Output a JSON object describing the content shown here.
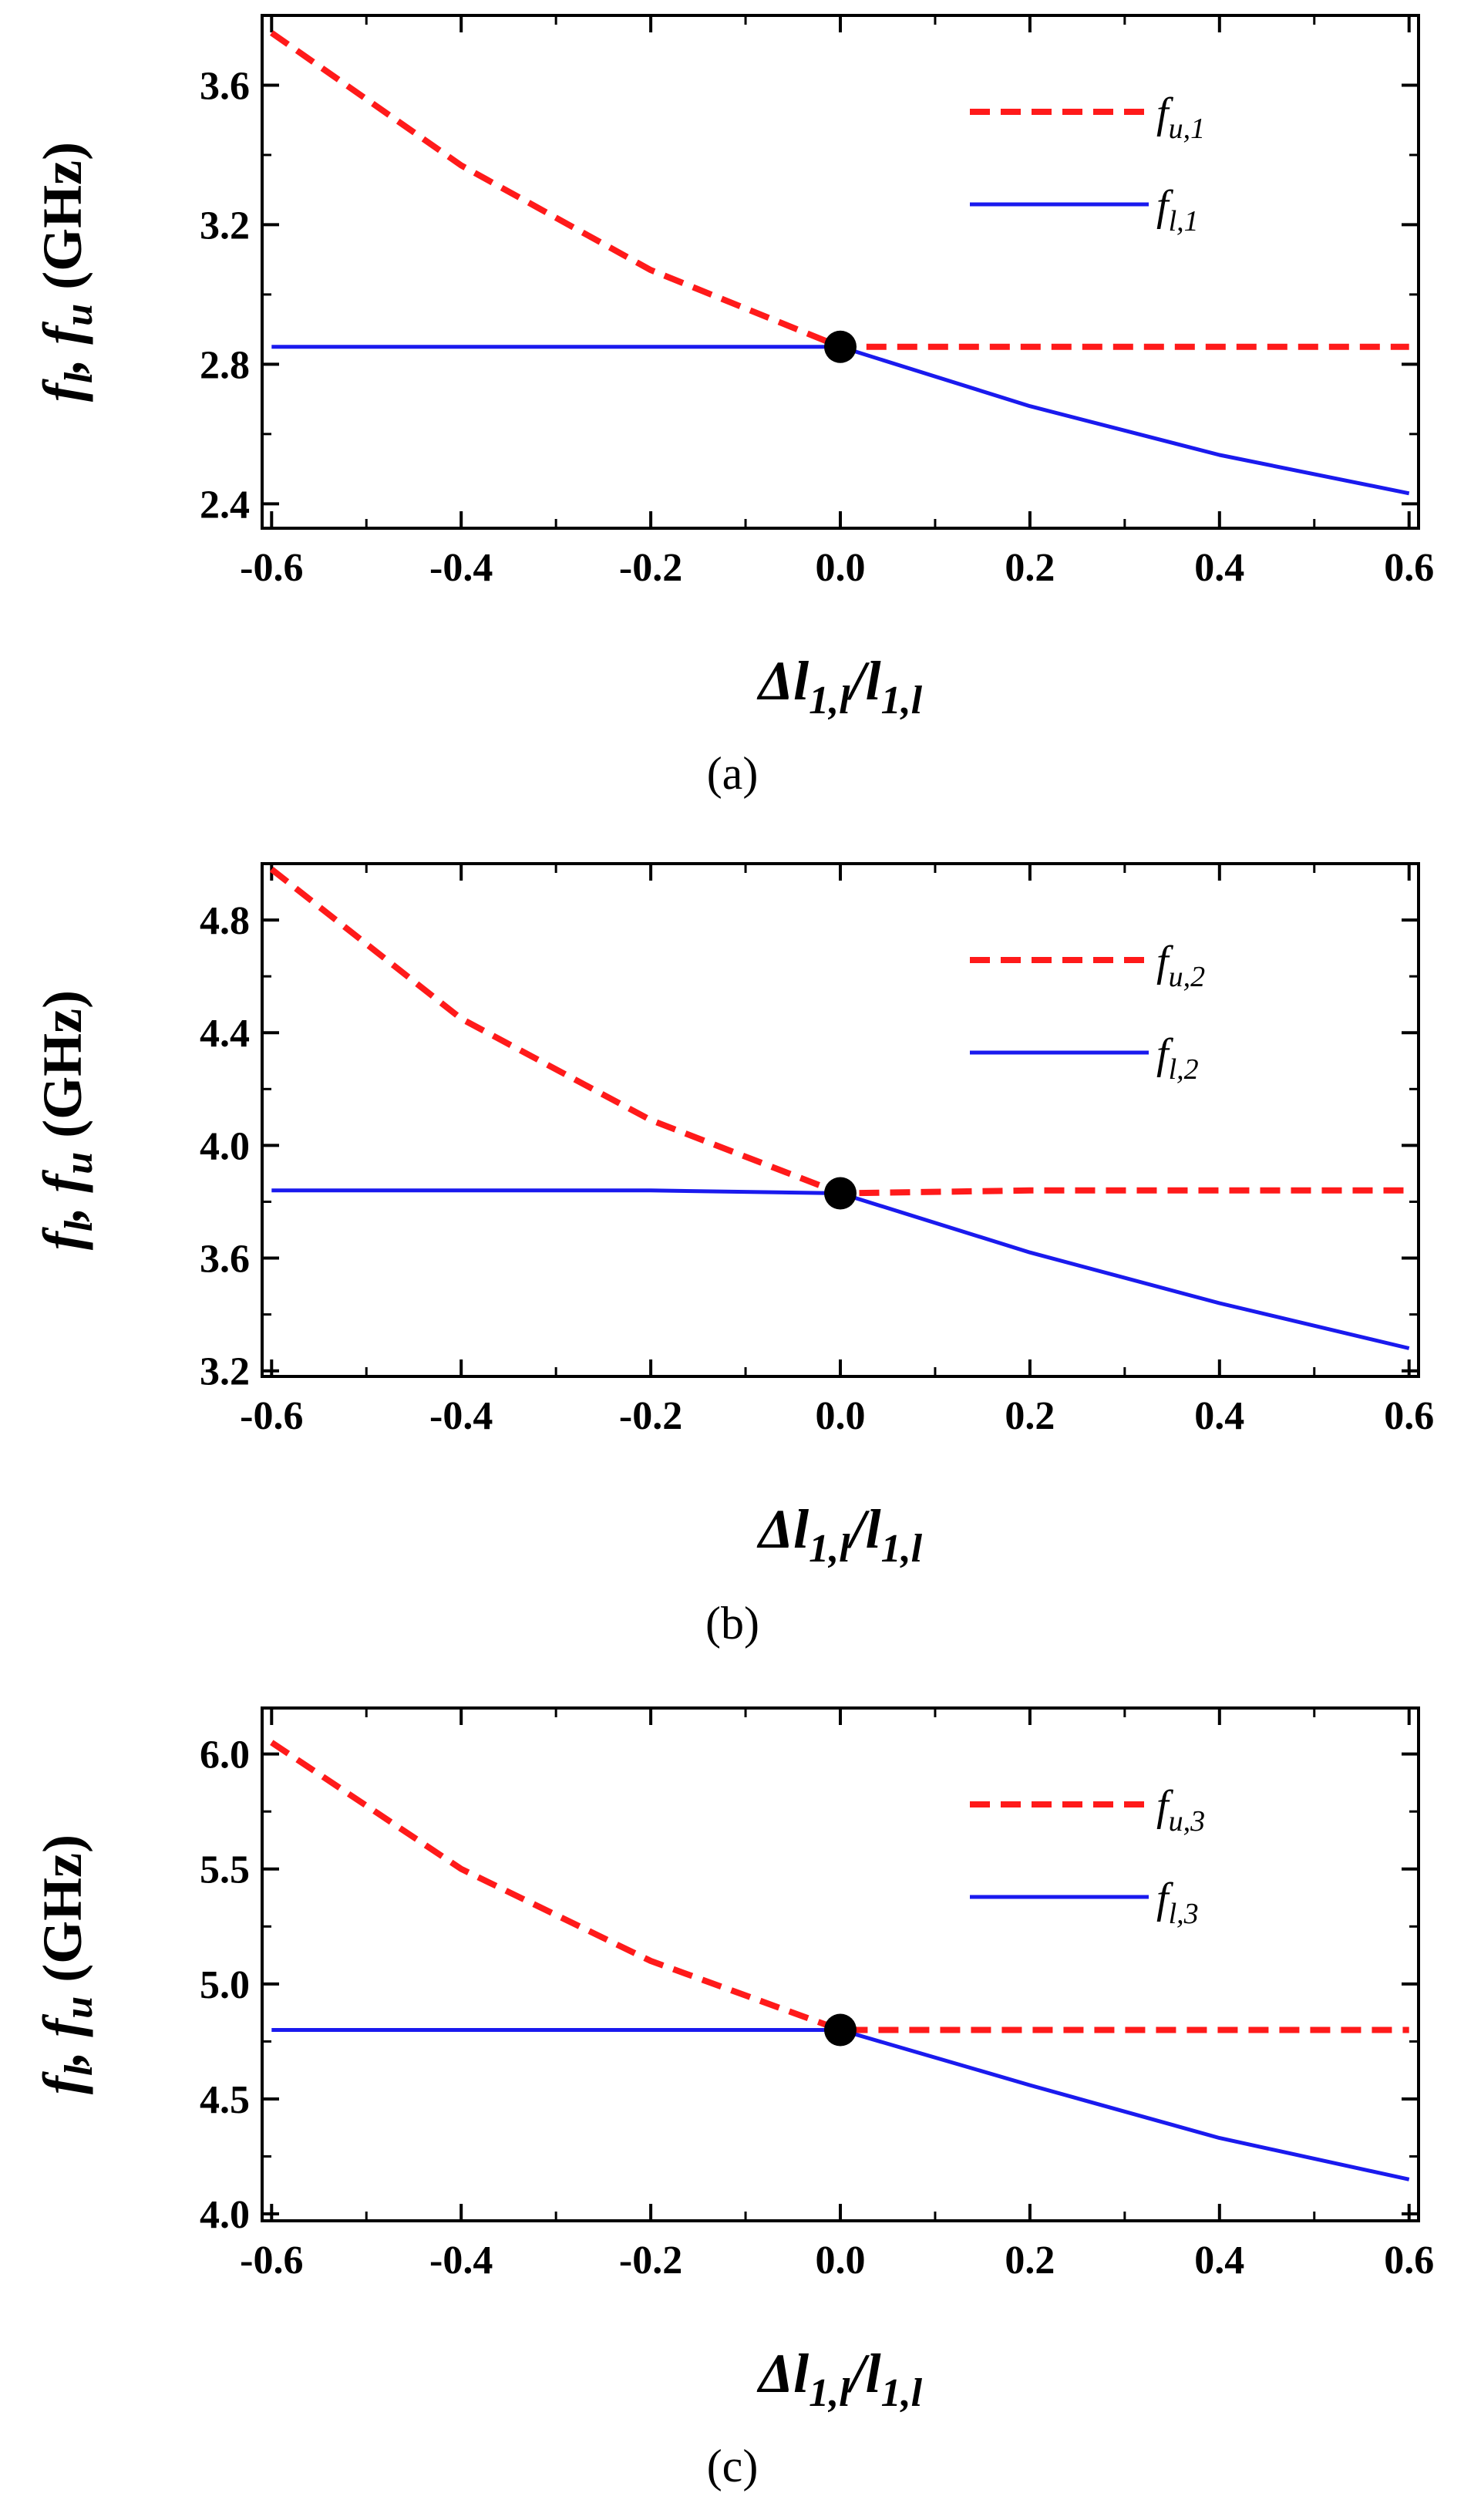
{
  "chart_data": [
    {
      "type": "line",
      "caption": "(a)",
      "xlabel": {
        "main": "Δl",
        "sub": "1,l",
        "slash": "/",
        "main2": "l",
        "sub2": "1,l"
      },
      "ylabel": {
        "f1": "f",
        "s1": "l",
        "comma": ", ",
        "f2": "f",
        "s2": "u",
        "unit": " (GHz)"
      },
      "xlim": [
        -0.61,
        0.61
      ],
      "ylim": [
        2.33,
        3.8
      ],
      "xticks": [
        -0.6,
        -0.4,
        -0.2,
        0.0,
        0.2,
        0.4,
        0.6
      ],
      "xtick_labels": [
        "-0.6",
        "-0.4",
        "-0.2",
        "0.0",
        "0.2",
        "0.4",
        "0.6"
      ],
      "yticks": [
        2.4,
        2.8,
        3.2,
        3.6
      ],
      "ytick_labels": [
        "2.4",
        "2.8",
        "3.2",
        "3.6"
      ],
      "series": [
        {
          "name": "f_u,1",
          "base": "f",
          "sub": "u,1",
          "color": "#ff1a1a",
          "dash": true,
          "x": [
            -0.6,
            -0.4,
            -0.2,
            0.0,
            0.2,
            0.4,
            0.6
          ],
          "values": [
            3.75,
            3.37,
            3.07,
            2.85,
            2.85,
            2.85,
            2.85
          ]
        },
        {
          "name": "f_l,1",
          "base": "f",
          "sub": "l,1",
          "color": "#1a1aee",
          "dash": false,
          "x": [
            -0.6,
            -0.4,
            -0.2,
            0.0,
            0.2,
            0.4,
            0.6
          ],
          "values": [
            2.85,
            2.85,
            2.85,
            2.85,
            2.68,
            2.54,
            2.43
          ]
        }
      ],
      "marker": {
        "x": 0.0,
        "y": 2.85
      }
    },
    {
      "type": "line",
      "caption": "(b)",
      "xlabel": {
        "main": "Δl",
        "sub": "1,l",
        "slash": "/",
        "main2": "l",
        "sub2": "1,l"
      },
      "ylabel": {
        "f1": "f",
        "s1": "l",
        "comma": ", ",
        "f2": "f",
        "s2": "u",
        "unit": " (GHz)"
      },
      "xlim": [
        -0.61,
        0.61
      ],
      "ylim": [
        3.18,
        5.0
      ],
      "xticks": [
        -0.6,
        -0.4,
        -0.2,
        0.0,
        0.2,
        0.4,
        0.6
      ],
      "xtick_labels": [
        "-0.6",
        "-0.4",
        "-0.2",
        "0.0",
        "0.2",
        "0.4",
        "0.6"
      ],
      "yticks": [
        3.2,
        3.6,
        4.0,
        4.4,
        4.8
      ],
      "ytick_labels": [
        "3.2",
        "3.6",
        "4.0",
        "4.4",
        "4.8"
      ],
      "series": [
        {
          "name": "f_u,2",
          "base": "f",
          "sub": "u,2",
          "color": "#ff1a1a",
          "dash": true,
          "x": [
            -0.6,
            -0.4,
            -0.2,
            0.0,
            0.2,
            0.4,
            0.6
          ],
          "values": [
            4.98,
            4.45,
            4.09,
            3.83,
            3.84,
            3.84,
            3.84
          ]
        },
        {
          "name": "f_l,2",
          "base": "f",
          "sub": "l,2",
          "color": "#1a1aee",
          "dash": false,
          "x": [
            -0.6,
            -0.4,
            -0.2,
            0.0,
            0.2,
            0.4,
            0.6
          ],
          "values": [
            3.84,
            3.84,
            3.84,
            3.83,
            3.62,
            3.44,
            3.28
          ]
        }
      ],
      "marker": {
        "x": 0.0,
        "y": 3.83
      }
    },
    {
      "type": "line",
      "caption": "(c)",
      "xlabel": {
        "main": "Δl",
        "sub": "1,l",
        "slash": "/",
        "main2": "l",
        "sub2": "1,l"
      },
      "ylabel": {
        "f1": "f",
        "s1": "l",
        "comma": ", ",
        "f2": "f",
        "s2": "u",
        "unit": " (GHz)"
      },
      "xlim": [
        -0.61,
        0.61
      ],
      "ylim": [
        3.97,
        6.2
      ],
      "xticks": [
        -0.6,
        -0.4,
        -0.2,
        0.0,
        0.2,
        0.4,
        0.6
      ],
      "xtick_labels": [
        "-0.6",
        "-0.4",
        "-0.2",
        "0.0",
        "0.2",
        "0.4",
        "0.6"
      ],
      "yticks": [
        4.0,
        4.5,
        5.0,
        5.5,
        6.0
      ],
      "ytick_labels": [
        "4.0",
        "4.5",
        "5.0",
        "5.5",
        "6.0"
      ],
      "series": [
        {
          "name": "f_u,3",
          "base": "f",
          "sub": "u,3",
          "color": "#ff1a1a",
          "dash": true,
          "x": [
            -0.6,
            -0.4,
            -0.2,
            0.0,
            0.2,
            0.4,
            0.6
          ],
          "values": [
            6.05,
            5.5,
            5.1,
            4.8,
            4.8,
            4.8,
            4.8
          ]
        },
        {
          "name": "f_l,3",
          "base": "f",
          "sub": "l,3",
          "color": "#1a1aee",
          "dash": false,
          "x": [
            -0.6,
            -0.4,
            -0.2,
            0.0,
            0.2,
            0.4,
            0.6
          ],
          "values": [
            4.8,
            4.8,
            4.8,
            4.8,
            4.56,
            4.33,
            4.15
          ]
        }
      ],
      "marker": {
        "x": 0.0,
        "y": 4.8
      }
    }
  ]
}
